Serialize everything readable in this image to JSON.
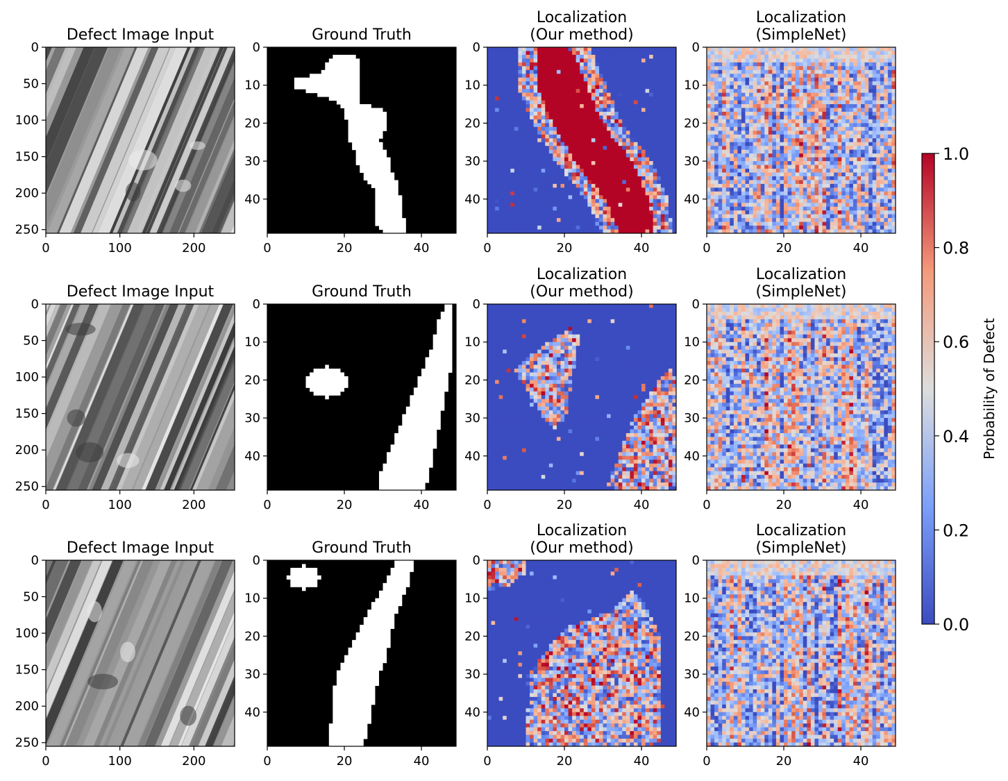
{
  "chart_data": {
    "type": "heatmap",
    "layout": {
      "rows": 3,
      "columns": 4
    },
    "panel_titles": [
      [
        "Defect Image Input"
      ],
      [
        "Ground Truth"
      ],
      [
        "Localization",
        "(Our method)"
      ],
      [
        "Localization",
        "(SimpleNet)"
      ]
    ],
    "axes": {
      "image_input": {
        "x_ticks": [
          "0",
          "100",
          "200"
        ],
        "y_ticks": [
          "0",
          "50",
          "100",
          "150",
          "200",
          "250"
        ],
        "xlim": [
          0,
          255
        ],
        "ylim": [
          255,
          0
        ]
      },
      "maps": {
        "x_ticks": [
          "0",
          "20",
          "40"
        ],
        "y_ticks": [
          "0",
          "10",
          "20",
          "30",
          "40"
        ],
        "xlim": [
          0,
          48
        ],
        "ylim": [
          48,
          0
        ]
      }
    },
    "colorbar": {
      "label": "Probability of Defect",
      "ticks": [
        "0.0",
        "0.2",
        "0.4",
        "0.6",
        "0.8",
        "1.0"
      ],
      "range": [
        0,
        1
      ],
      "colormap": "coolwarm",
      "low_color": "#3b4cc0",
      "mid_color": "#dddddd",
      "high_color": "#b40426"
    },
    "colors": {
      "image_dark": "#2a2a2a",
      "image_light": "#f2f2f2",
      "mask_on": "#ffffff",
      "mask_off": "#000000"
    },
    "rows": [
      {
        "ground_truth_mask": {
          "description": "irregular vertical streak",
          "segments": [
            [
              2,
              17,
              23
            ],
            [
              4,
              15,
              24
            ],
            [
              6,
              14,
              24
            ],
            [
              8,
              7,
              24
            ],
            [
              10,
              7,
              24
            ],
            [
              12,
              13,
              24
            ],
            [
              14,
              18,
              24
            ],
            [
              16,
              20,
              30
            ],
            [
              18,
              20,
              31
            ],
            [
              20,
              21,
              31
            ],
            [
              22,
              21,
              30
            ],
            [
              24,
              21,
              29
            ],
            [
              26,
              22,
              30
            ],
            [
              28,
              23,
              31
            ],
            [
              30,
              23,
              32
            ],
            [
              32,
              24,
              32
            ],
            [
              34,
              25,
              33
            ],
            [
              36,
              27,
              34
            ],
            [
              38,
              28,
              34
            ],
            [
              40,
              28,
              35
            ],
            [
              42,
              28,
              35
            ],
            [
              44,
              28,
              35
            ],
            [
              46,
              28,
              36
            ],
            [
              48,
              30,
              36
            ]
          ]
        },
        "our_method_defect_band": {
          "center_line": [
            [
              0,
              17
            ],
            [
              10,
              19
            ],
            [
              20,
              23
            ],
            [
              30,
              30
            ],
            [
              40,
              36
            ],
            [
              48,
              38
            ]
          ],
          "half_width": [
            [
              0,
              7
            ],
            [
              10,
              9
            ],
            [
              20,
              9
            ],
            [
              30,
              10
            ],
            [
              40,
              8
            ],
            [
              48,
              7
            ]
          ]
        }
      },
      {
        "ground_truth_mask": {
          "description": "small blob and diagonal stripe",
          "blobs": [
            [
              15,
              20,
              4
            ]
          ],
          "segments": [
            [
              0,
              46,
              48
            ],
            [
              5,
              44,
              48
            ],
            [
              10,
              43,
              48
            ],
            [
              15,
              41,
              48
            ],
            [
              20,
              39,
              47
            ],
            [
              25,
              37,
              46
            ],
            [
              30,
              35,
              45
            ],
            [
              35,
              33,
              44
            ],
            [
              40,
              31,
              43
            ],
            [
              45,
              29,
              42
            ],
            [
              48,
              29,
              41
            ]
          ]
        },
        "our_method_defect_band": {
          "triangle": [
            [
              9,
              17
            ],
            [
              22,
              8
            ],
            [
              18,
              32
            ]
          ],
          "lower_right_region": [
            [
              33,
              48
            ],
            [
              40,
              30
            ],
            [
              48,
              18
            ],
            [
              48,
              48
            ]
          ]
        }
      },
      {
        "ground_truth_mask": {
          "description": "top blob and diagonal streak",
          "blobs": [
            [
              9,
              4,
              3
            ]
          ],
          "segments": [
            [
              0,
              33,
              38
            ],
            [
              5,
              31,
              37
            ],
            [
              10,
              28,
              35
            ],
            [
              15,
              25,
              33
            ],
            [
              20,
              23,
              32
            ],
            [
              25,
              20,
              31
            ],
            [
              30,
              18,
              29
            ],
            [
              35,
              17,
              28
            ],
            [
              40,
              17,
              27
            ],
            [
              45,
              16,
              26
            ],
            [
              48,
              16,
              25
            ]
          ]
        },
        "our_method_defect_band": {
          "top_left_patch": [
            [
              0,
              0
            ],
            [
              8,
              0
            ],
            [
              8,
              4
            ],
            [
              0,
              6
            ]
          ],
          "main_region": [
            [
              12,
              48
            ],
            [
              13,
              30
            ],
            [
              20,
              20
            ],
            [
              32,
              16
            ],
            [
              38,
              10
            ],
            [
              43,
              20
            ],
            [
              43,
              48
            ]
          ]
        }
      }
    ]
  }
}
